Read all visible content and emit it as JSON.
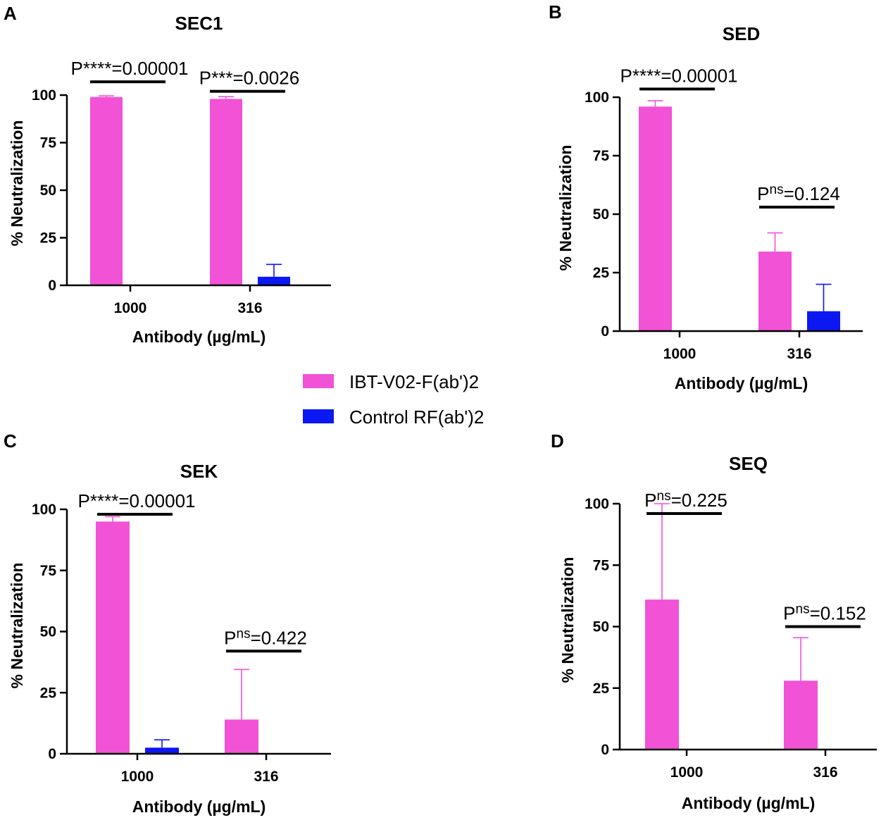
{
  "colors": {
    "series_pink": "#f252d6",
    "series_blue": "#0b18f2",
    "axis": "#000000"
  },
  "legend": {
    "items": [
      {
        "label": "IBT-V02-F(ab')2",
        "color": "#f252d6"
      },
      {
        "label": "Control RF(ab')2",
        "color": "#0b18f2"
      }
    ]
  },
  "chart_data": [
    {
      "panel": "A",
      "type": "bar",
      "title": "SEC1",
      "xlabel": "Antibody (µg/mL)",
      "ylabel": "% Neutralization",
      "ylim": [
        0,
        100
      ],
      "yticks": [
        0,
        25,
        50,
        75,
        100
      ],
      "categories": [
        "1000",
        "316"
      ],
      "series": [
        {
          "name": "IBT-V02-F(ab')2",
          "values": [
            99,
            98
          ],
          "errors": [
            0.6,
            1.2
          ]
        },
        {
          "name": "Control RF(ab')2",
          "values": [
            0,
            4.5
          ],
          "errors": [
            0,
            6.5
          ]
        }
      ],
      "annotations": [
        {
          "category": 0,
          "prefix": "P",
          "sup": "****",
          "text": "=0.00001",
          "level": 107
        },
        {
          "category": 1,
          "prefix": "P",
          "sup": "***",
          "text": "=0.0026",
          "level": 102
        }
      ]
    },
    {
      "panel": "B",
      "type": "bar",
      "title": "SED",
      "xlabel": "Antibody (µg/mL)",
      "ylabel": "% Neutralization",
      "ylim": [
        0,
        100
      ],
      "yticks": [
        0,
        25,
        50,
        75,
        100
      ],
      "categories": [
        "1000",
        "316"
      ],
      "series": [
        {
          "name": "IBT-V02-F(ab')2",
          "values": [
            96,
            34
          ],
          "errors": [
            2.5,
            8
          ]
        },
        {
          "name": "Control RF(ab')2",
          "values": [
            0,
            8.5
          ],
          "errors": [
            0,
            11.5
          ]
        }
      ],
      "annotations": [
        {
          "category": 0,
          "prefix": "P",
          "sup": "****",
          "text": "=0.00001",
          "level": 103.5
        },
        {
          "category": 1,
          "prefix": "P",
          "sup": "ns",
          "text": "=0.124",
          "level": 53
        }
      ]
    },
    {
      "panel": "C",
      "type": "bar",
      "title": "SEK",
      "xlabel": "Antibody (µg/mL)",
      "ylabel": "% Neutralization",
      "ylim": [
        0,
        100
      ],
      "yticks": [
        0,
        25,
        50,
        75,
        100
      ],
      "categories": [
        "1000",
        "316"
      ],
      "series": [
        {
          "name": "IBT-V02-F(ab')2",
          "values": [
            95,
            14
          ],
          "errors": [
            2,
            20.5
          ]
        },
        {
          "name": "Control RF(ab')2",
          "values": [
            2.5,
            0
          ],
          "errors": [
            3.2,
            0
          ]
        }
      ],
      "annotations": [
        {
          "category": 0,
          "prefix": "P",
          "sup": "****",
          "text": "=0.00001",
          "level": 98
        },
        {
          "category": 1,
          "prefix": "P",
          "sup": "ns",
          "text": "=0.422",
          "level": 42
        }
      ]
    },
    {
      "panel": "D",
      "type": "bar",
      "title": "SEQ",
      "xlabel": "Antibody (µg/mL)",
      "ylabel": "% Neutralization",
      "ylim": [
        0,
        100
      ],
      "yticks": [
        0,
        25,
        50,
        75,
        100
      ],
      "categories": [
        "1000",
        "316"
      ],
      "series": [
        {
          "name": "IBT-V02-F(ab')2",
          "values": [
            61,
            28
          ],
          "errors": [
            39,
            17.5
          ]
        },
        {
          "name": "Control RF(ab')2",
          "values": [
            0,
            0
          ],
          "errors": [
            0,
            0
          ]
        }
      ],
      "annotations": [
        {
          "category": 0,
          "prefix": "P",
          "sup": "ns",
          "text": "=0.225",
          "level": 96
        },
        {
          "category": 1,
          "prefix": "P",
          "sup": "ns",
          "text": "=0.152",
          "level": 50
        }
      ]
    }
  ]
}
